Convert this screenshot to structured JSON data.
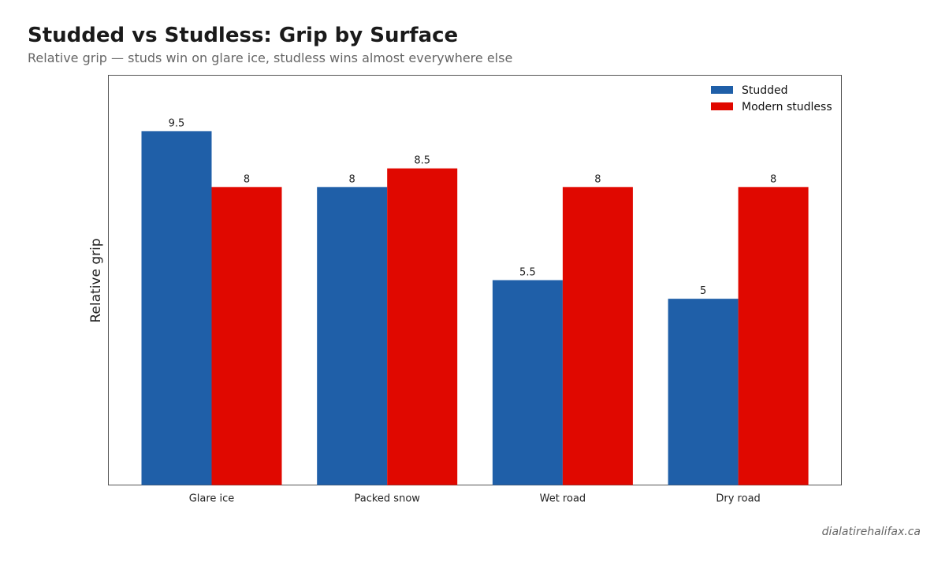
{
  "title": "Studded vs Studless: Grip by Surface",
  "subtitle": "Relative grip — studs win on glare ice, studless wins almost everywhere else",
  "credit": "dialatirehalifax.ca",
  "chart_data": {
    "type": "bar",
    "categories": [
      "Glare ice",
      "Packed snow",
      "Wet road",
      "Dry road"
    ],
    "series": [
      {
        "name": "Studded",
        "values": [
          9.5,
          8,
          5.5,
          5
        ],
        "color": "#1f5fa8"
      },
      {
        "name": "Modern studless",
        "values": [
          8,
          8.5,
          8,
          8
        ],
        "color": "#e00800"
      }
    ],
    "xlabel": "",
    "ylabel": "Relative grip",
    "ylim": [
      0,
      11
    ],
    "grid": false,
    "legend_position": "top-right",
    "y_ticks_shown": false
  }
}
